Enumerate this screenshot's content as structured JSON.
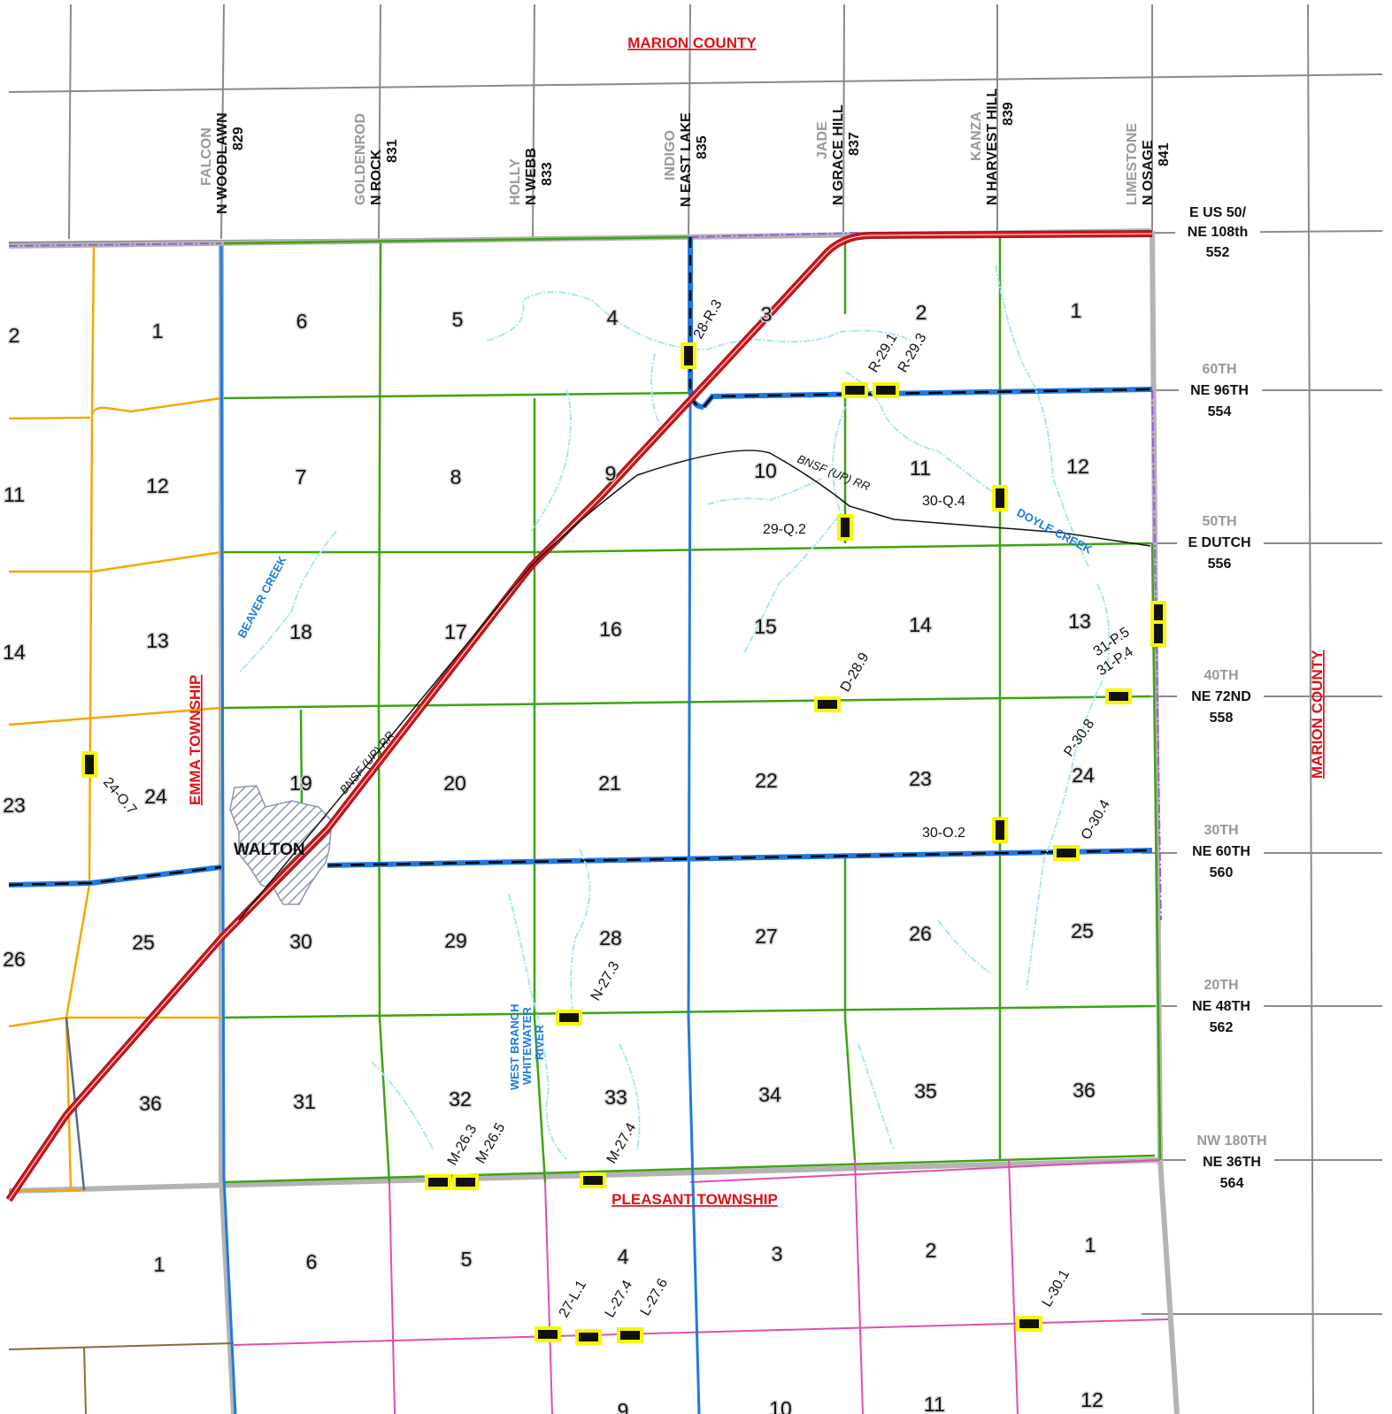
{
  "map": {
    "county_labels": {
      "north": "MARION COUNTY",
      "east": "MARION COUNTY"
    },
    "township_labels": {
      "west": "EMMA TOWNSHIP",
      "south": "PLEASANT TOWNSHIP"
    },
    "town": "WALTON",
    "railroad": "BNSF (UP) RR",
    "creeks": {
      "beaver": "BEAVER CREEK",
      "doyle": "DOYLE CREEK",
      "whitewater": [
        "WEST BRANCH",
        "WHITEWATER",
        "RIVER"
      ]
    },
    "ns_roads": [
      {
        "old": "FALCON",
        "name": "N WOODLAWN",
        "num": "829"
      },
      {
        "old": "GOLDENROD",
        "name": "N ROCK",
        "num": "831"
      },
      {
        "old": "HOLLY",
        "name": "N WEBB",
        "num": "833"
      },
      {
        "old": "INDIGO",
        "name": "N EAST LAKE",
        "num": "835"
      },
      {
        "old": "JADE",
        "name": "N GRACE HILL",
        "num": "837"
      },
      {
        "old": "KANZA",
        "name": "N HARVEST HILL",
        "num": "839"
      },
      {
        "old": "LIMESTONE",
        "name": "N OSAGE",
        "num": "841"
      }
    ],
    "ew_roads": [
      {
        "old": "",
        "name": "E US 50/",
        "name2": "NE 108th",
        "num": "552"
      },
      {
        "old": "60TH",
        "name": "NE 96TH",
        "num": "554"
      },
      {
        "old": "50TH",
        "name": "E DUTCH",
        "num": "556"
      },
      {
        "old": "40TH",
        "name": "NE 72ND",
        "num": "558"
      },
      {
        "old": "30TH",
        "name": "NE 60TH",
        "num": "560"
      },
      {
        "old": "20TH",
        "name": "NE 48TH",
        "num": "562"
      },
      {
        "old": "NW 180TH",
        "name": "NE 36TH",
        "num": "564"
      }
    ],
    "sections": {
      "west_col": [
        "2",
        "11",
        "14",
        "23",
        "26"
      ],
      "emma": [
        "1",
        "12",
        "13",
        "24",
        "25",
        "36"
      ],
      "main": [
        [
          "6",
          "5",
          "4",
          "3",
          "2",
          "1"
        ],
        [
          "7",
          "8",
          "9",
          "10",
          "11",
          "12"
        ],
        [
          "18",
          "17",
          "16",
          "15",
          "14",
          "13"
        ],
        [
          "19",
          "20",
          "21",
          "22",
          "23",
          "24"
        ],
        [
          "30",
          "29",
          "28",
          "27",
          "26",
          "25"
        ],
        [
          "31",
          "32",
          "33",
          "34",
          "35",
          "36"
        ]
      ],
      "pleasant": [
        "1",
        "6",
        "5",
        "4",
        "3",
        "2",
        "1",
        "9",
        "10",
        "11",
        "12"
      ]
    },
    "bridges": [
      "28-R.3",
      "R-29.1",
      "R-29.3",
      "30-Q.4",
      "29-Q.2",
      "31-P.5",
      "31-P.4",
      "D-28.9",
      "P-30.8",
      "24-O.7",
      "30-O.2",
      "O-30.4",
      "N-27.3",
      "M-26.3",
      "M-26.5",
      "M-27.4",
      "27-L.1",
      "L-27.4",
      "L-27.6",
      "L-30.1"
    ],
    "colors": {
      "highway": "#d8141c",
      "township_road": "#3ea313",
      "county_road": "#1f7ae0",
      "emma_road": "#f4a700",
      "pleasant_road": "#e04fb0",
      "stream": "#a6e8ee",
      "grid": "#8a8a8a",
      "bridge": "#f7f700"
    }
  }
}
